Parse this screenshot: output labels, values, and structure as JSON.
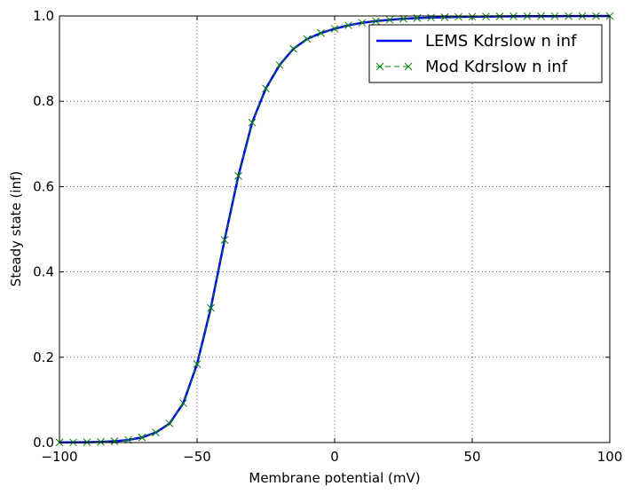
{
  "chart_data": {
    "type": "line",
    "title": "",
    "xlabel": "Membrane potential (mV)",
    "ylabel": "Steady state (inf)",
    "xlim": [
      -100,
      100
    ],
    "ylim": [
      0.0,
      1.0
    ],
    "xticks": [
      -100,
      -50,
      0,
      50,
      100
    ],
    "xtick_labels": [
      "−100",
      "−50",
      "0",
      "50",
      "100"
    ],
    "yticks": [
      0.0,
      0.2,
      0.4,
      0.6,
      0.8,
      1.0
    ],
    "ytick_labels": [
      "0.0",
      "0.2",
      "0.4",
      "0.6",
      "0.8",
      "1.0"
    ],
    "grid": true,
    "legend_position": "top-right",
    "x": [
      -100,
      -95,
      -90,
      -85,
      -80,
      -75,
      -70,
      -65,
      -60,
      -55,
      -50,
      -45,
      -40,
      -35,
      -30,
      -25,
      -20,
      -15,
      -10,
      -5,
      0,
      5,
      10,
      15,
      20,
      25,
      30,
      35,
      40,
      45,
      50,
      55,
      60,
      65,
      70,
      75,
      80,
      85,
      90,
      95,
      100
    ],
    "series": [
      {
        "name": "LEMS Kdrslow n inf",
        "color": "#0000ff",
        "style": "solid-line",
        "values": [
          0.0002,
          0.0004,
          0.0008,
          0.0016,
          0.0031,
          0.0061,
          0.012,
          0.0234,
          0.0446,
          0.0924,
          0.184,
          0.3155,
          0.475,
          0.625,
          0.75,
          0.83,
          0.885,
          0.923,
          0.946,
          0.96,
          0.97,
          0.978,
          0.984,
          0.988,
          0.991,
          0.9935,
          0.995,
          0.9962,
          0.9971,
          0.9978,
          0.9983,
          0.9987,
          0.999,
          0.9992,
          0.9994,
          0.9995,
          0.9996,
          0.9997,
          0.9998,
          0.9998,
          0.9999
        ]
      },
      {
        "name": "Mod Kdrslow n inf",
        "color": "#008000",
        "style": "dashed-x",
        "values": [
          0.0002,
          0.0004,
          0.0008,
          0.0016,
          0.0031,
          0.0061,
          0.012,
          0.0234,
          0.0446,
          0.0924,
          0.184,
          0.3155,
          0.475,
          0.625,
          0.75,
          0.83,
          0.885,
          0.923,
          0.946,
          0.96,
          0.97,
          0.978,
          0.984,
          0.988,
          0.991,
          0.9935,
          0.995,
          0.9962,
          0.9971,
          0.9978,
          0.9983,
          0.9987,
          0.999,
          0.9992,
          0.9994,
          0.9995,
          0.9996,
          0.9997,
          0.9998,
          0.9998,
          0.9999
        ]
      }
    ]
  }
}
